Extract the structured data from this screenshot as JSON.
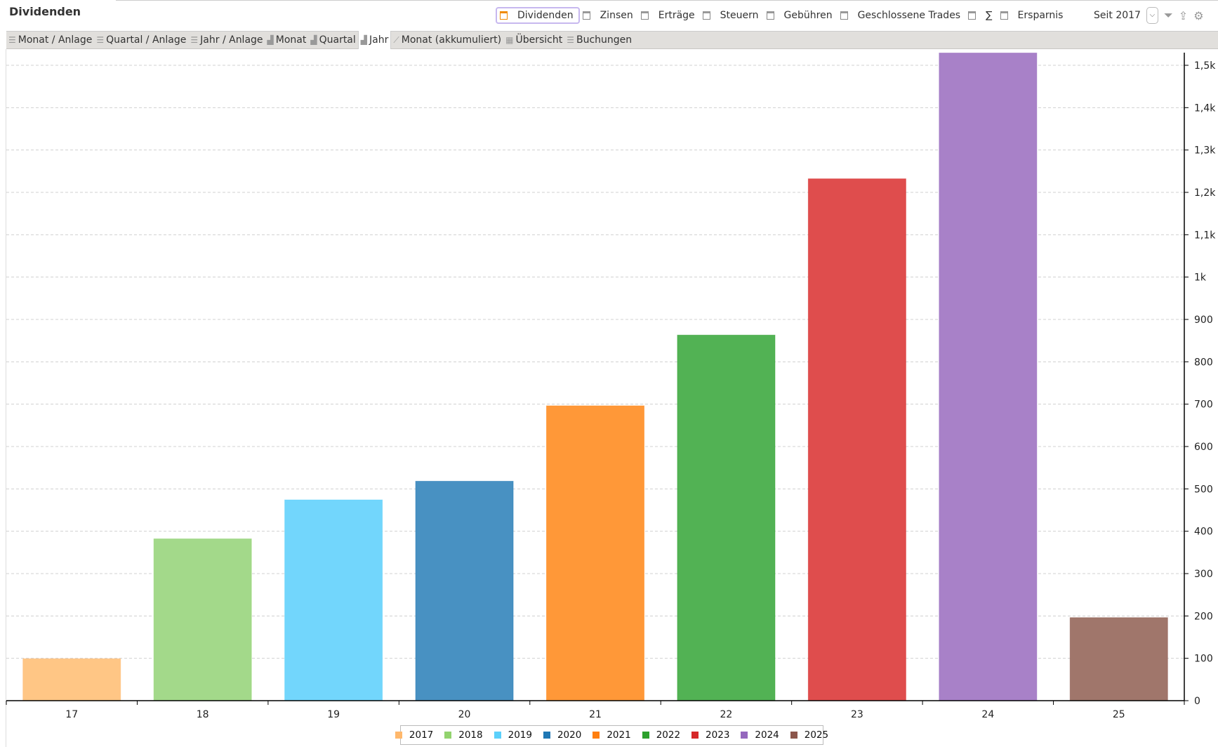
{
  "header": {
    "title": "Dividenden"
  },
  "filters": [
    {
      "label": "Dividenden",
      "checked": true
    },
    {
      "label": "Zinsen",
      "checked": false
    },
    {
      "label": "Erträge",
      "checked": false
    },
    {
      "label": "Steuern",
      "checked": false
    },
    {
      "label": "Gebühren",
      "checked": false
    },
    {
      "label": "Geschlossene Trades",
      "checked": false
    },
    {
      "label": "∑",
      "checked": false
    },
    {
      "label": "Ersparnis",
      "checked": false
    }
  ],
  "period": {
    "label": "Seit 2017"
  },
  "tabs": [
    {
      "label": "Monat / Anlage",
      "icon": "list-icon"
    },
    {
      "label": "Quartal / Anlage",
      "icon": "list-icon"
    },
    {
      "label": "Jahr / Anlage",
      "icon": "list-icon"
    },
    {
      "label": "Monat",
      "icon": "bar-chart-icon"
    },
    {
      "label": "Quartal",
      "icon": "bar-chart-icon"
    },
    {
      "label": "Jahr",
      "icon": "bar-chart-icon",
      "active": true
    },
    {
      "label": "Monat (akkumuliert)",
      "icon": "line-chart-icon"
    },
    {
      "label": "Übersicht",
      "icon": "calendar-icon"
    },
    {
      "label": "Buchungen",
      "icon": "list-icon"
    }
  ],
  "chart_data": {
    "type": "bar",
    "categories": [
      "17",
      "18",
      "19",
      "20",
      "21",
      "22",
      "23",
      "24",
      "25"
    ],
    "values": [
      99,
      382,
      474,
      518,
      696,
      863,
      1232,
      1529,
      196
    ],
    "colors": [
      "#ffc685",
      "#a3d98a",
      "#72d6fc",
      "#4891c2",
      "#ff9838",
      "#52b254",
      "#df4d4d",
      "#a881c8",
      "#a0766b"
    ],
    "legend": [
      "2017",
      "2018",
      "2019",
      "2020",
      "2021",
      "2022",
      "2023",
      "2024",
      "2025"
    ],
    "legend_colors": [
      "#ffb86c",
      "#92d36e",
      "#5bd0fb",
      "#1f77b4",
      "#ff7f0e",
      "#2ca02c",
      "#d62728",
      "#9467bd",
      "#8c564b"
    ],
    "ylim": [
      0,
      1500
    ],
    "yticks": [
      0,
      100,
      200,
      300,
      400,
      500,
      600,
      700,
      800,
      900,
      1000,
      1100,
      1200,
      1300,
      1400,
      1500
    ],
    "ytick_labels": [
      "0",
      "100",
      "200",
      "300",
      "400",
      "500",
      "600",
      "700",
      "800",
      "900",
      "1k",
      "1,1k",
      "1,2k",
      "1,3k",
      "1,4k",
      "1,5k"
    ],
    "y_axis_position": "right",
    "grid": true,
    "legend_position": "bottom"
  }
}
